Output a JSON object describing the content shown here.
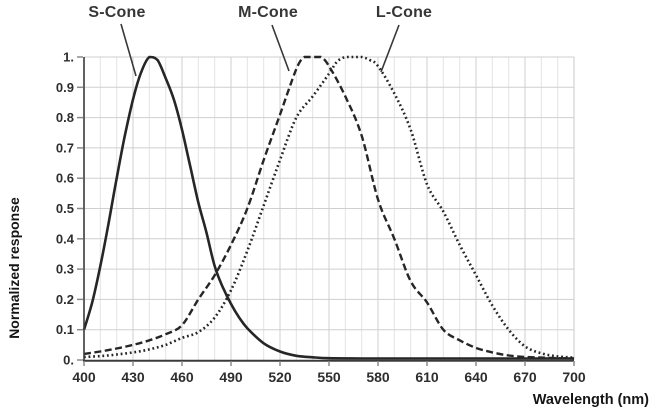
{
  "chart_data": {
    "type": "line",
    "title": "",
    "xlabel": "Wavelength (nm)",
    "ylabel": "Normalized response",
    "xlim": [
      400,
      700
    ],
    "ylim": [
      0,
      1
    ],
    "x_ticks": [
      400,
      430,
      460,
      490,
      520,
      550,
      580,
      610,
      640,
      670,
      700
    ],
    "x_minor_step": 10,
    "y_ticks": [
      {
        "value": 0.0,
        "label": "0."
      },
      {
        "value": 0.1,
        "label": "0.1"
      },
      {
        "value": 0.2,
        "label": "0.2"
      },
      {
        "value": 0.3,
        "label": "0.3"
      },
      {
        "value": 0.4,
        "label": "0.4"
      },
      {
        "value": 0.5,
        "label": "0.5"
      },
      {
        "value": 0.6,
        "label": "0.6"
      },
      {
        "value": 0.7,
        "label": "0.7"
      },
      {
        "value": 0.8,
        "label": "0.8"
      },
      {
        "value": 0.9,
        "label": "0.9"
      },
      {
        "value": 1.0,
        "label": "1."
      }
    ],
    "grid": "on",
    "legend_position": "callout-labels-above-plot",
    "series": [
      {
        "name": "S-Cone",
        "line_style": "solid",
        "points": [
          [
            400,
            0.1
          ],
          [
            405,
            0.19
          ],
          [
            410,
            0.31
          ],
          [
            415,
            0.45
          ],
          [
            420,
            0.6
          ],
          [
            425,
            0.74
          ],
          [
            430,
            0.86
          ],
          [
            435,
            0.95
          ],
          [
            440,
            1.0
          ],
          [
            445,
            0.99
          ],
          [
            450,
            0.93
          ],
          [
            455,
            0.86
          ],
          [
            460,
            0.76
          ],
          [
            465,
            0.64
          ],
          [
            470,
            0.52
          ],
          [
            475,
            0.42
          ],
          [
            480,
            0.31
          ],
          [
            485,
            0.24
          ],
          [
            490,
            0.185
          ],
          [
            495,
            0.14
          ],
          [
            500,
            0.105
          ],
          [
            510,
            0.055
          ],
          [
            520,
            0.028
          ],
          [
            530,
            0.014
          ],
          [
            540,
            0.009
          ],
          [
            550,
            0.006
          ],
          [
            570,
            0.005
          ],
          [
            600,
            0.005
          ],
          [
            650,
            0.005
          ],
          [
            700,
            0.005
          ]
        ]
      },
      {
        "name": "M-Cone",
        "line_style": "dashed",
        "points": [
          [
            400,
            0.02
          ],
          [
            410,
            0.028
          ],
          [
            420,
            0.038
          ],
          [
            430,
            0.05
          ],
          [
            440,
            0.065
          ],
          [
            450,
            0.085
          ],
          [
            460,
            0.115
          ],
          [
            470,
            0.2
          ],
          [
            480,
            0.28
          ],
          [
            490,
            0.38
          ],
          [
            500,
            0.5
          ],
          [
            510,
            0.66
          ],
          [
            520,
            0.81
          ],
          [
            530,
            0.96
          ],
          [
            535,
            1.0
          ],
          [
            540,
            1.0
          ],
          [
            545,
            1.0
          ],
          [
            550,
            0.97
          ],
          [
            560,
            0.87
          ],
          [
            570,
            0.74
          ],
          [
            580,
            0.53
          ],
          [
            590,
            0.4
          ],
          [
            600,
            0.26
          ],
          [
            610,
            0.19
          ],
          [
            620,
            0.1
          ],
          [
            630,
            0.065
          ],
          [
            640,
            0.04
          ],
          [
            650,
            0.025
          ],
          [
            660,
            0.015
          ],
          [
            670,
            0.01
          ],
          [
            680,
            0.008
          ],
          [
            690,
            0.006
          ],
          [
            700,
            0.005
          ]
        ]
      },
      {
        "name": "L-Cone",
        "line_style": "dotted",
        "points": [
          [
            400,
            0.01
          ],
          [
            410,
            0.013
          ],
          [
            420,
            0.018
          ],
          [
            430,
            0.025
          ],
          [
            440,
            0.035
          ],
          [
            450,
            0.05
          ],
          [
            460,
            0.073
          ],
          [
            470,
            0.092
          ],
          [
            480,
            0.14
          ],
          [
            490,
            0.23
          ],
          [
            500,
            0.36
          ],
          [
            510,
            0.51
          ],
          [
            520,
            0.66
          ],
          [
            530,
            0.8
          ],
          [
            540,
            0.87
          ],
          [
            550,
            0.945
          ],
          [
            555,
            0.985
          ],
          [
            560,
            1.0
          ],
          [
            565,
            1.0
          ],
          [
            570,
            1.0
          ],
          [
            575,
            0.99
          ],
          [
            580,
            0.97
          ],
          [
            590,
            0.88
          ],
          [
            600,
            0.76
          ],
          [
            610,
            0.58
          ],
          [
            620,
            0.49
          ],
          [
            630,
            0.38
          ],
          [
            640,
            0.28
          ],
          [
            650,
            0.18
          ],
          [
            660,
            0.1
          ],
          [
            670,
            0.045
          ],
          [
            680,
            0.022
          ],
          [
            690,
            0.012
          ],
          [
            700,
            0.008
          ]
        ]
      }
    ]
  },
  "colors": {
    "background": "#ffffff",
    "curve": "#262626",
    "grid_minor": "#e4e4e4",
    "grid_major": "#cfcfcf",
    "plot_border": "#c9c9c9",
    "axis": "#3b3b3b",
    "tick": "#8a8a8a",
    "tick_text": "#2e2e2e",
    "leader_line": "#383838"
  }
}
